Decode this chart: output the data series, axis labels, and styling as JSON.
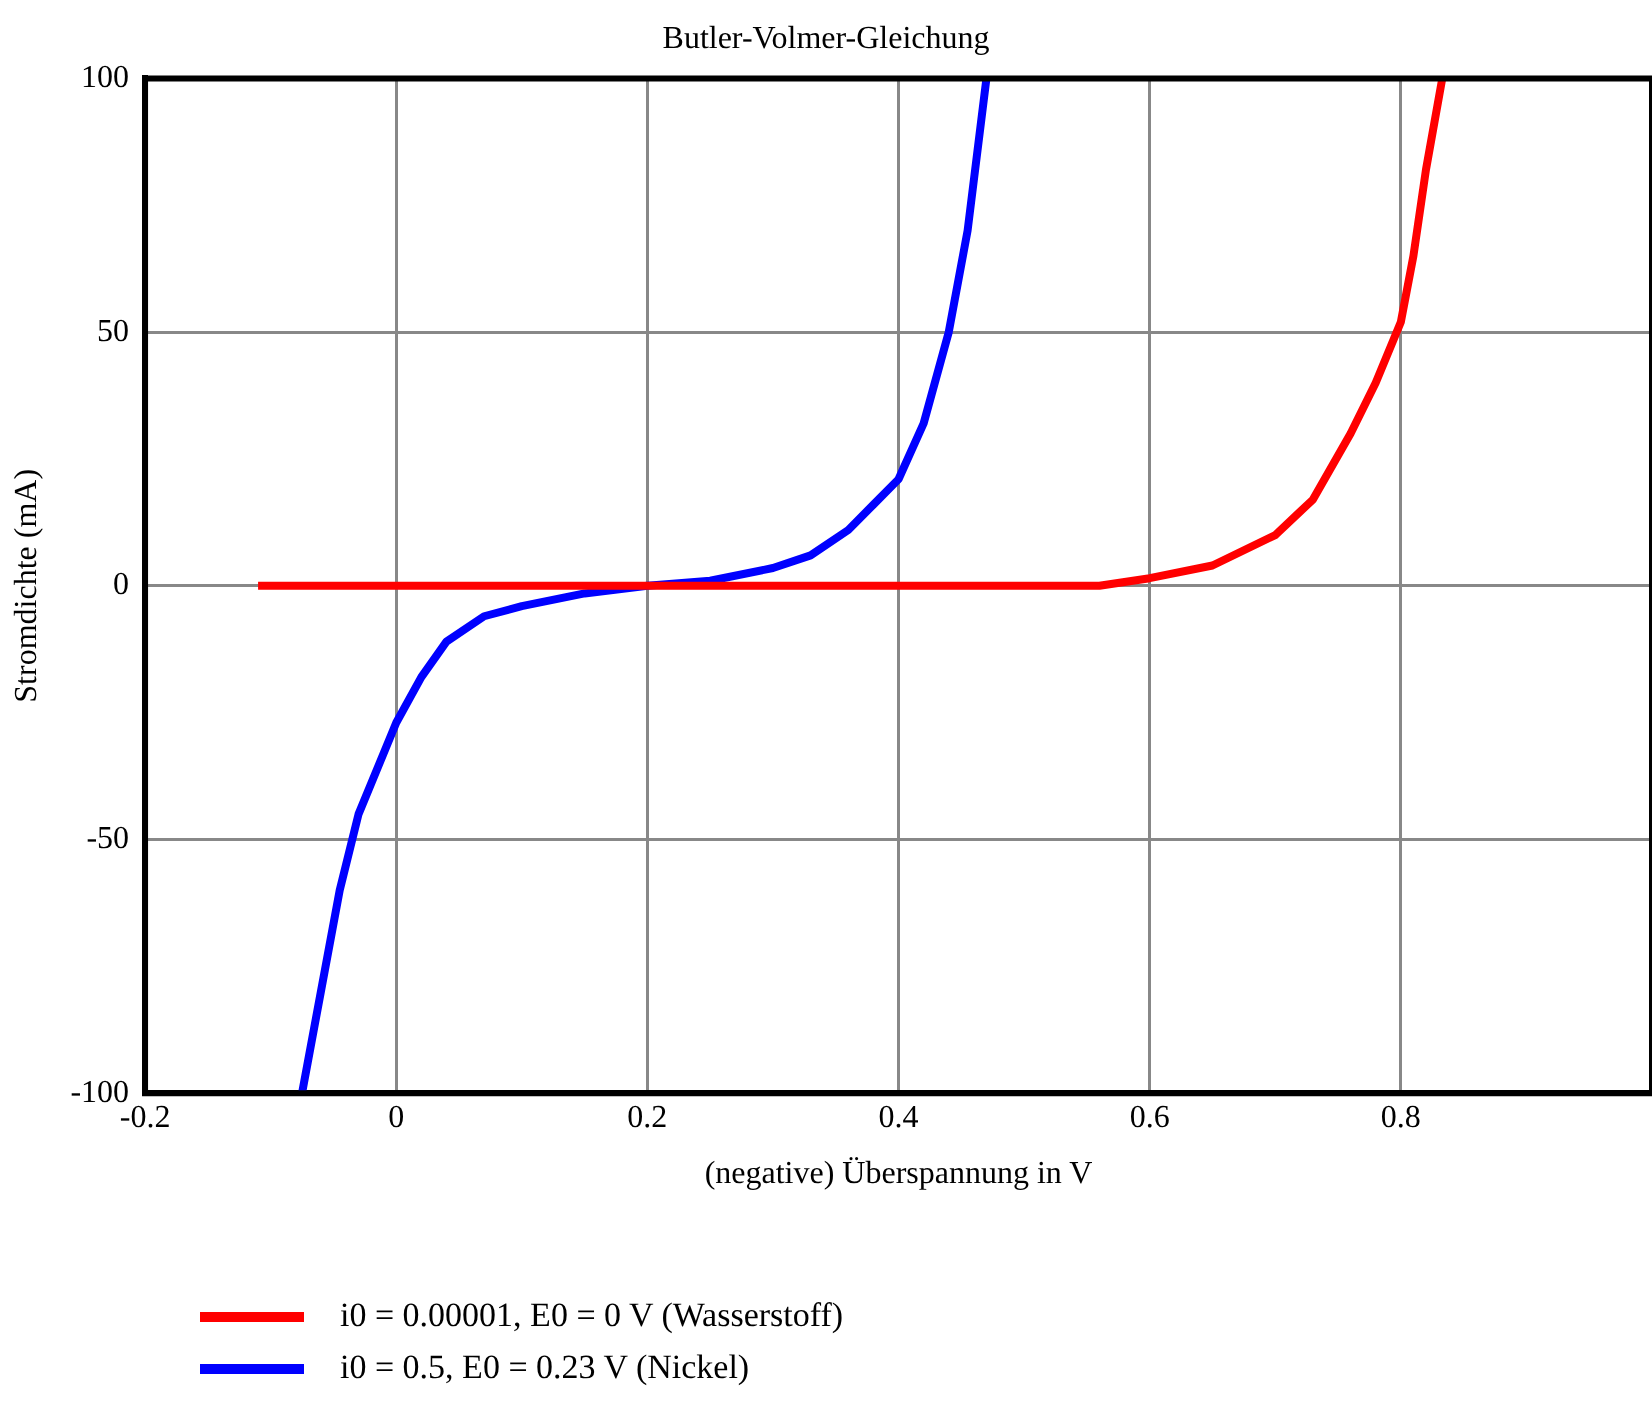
{
  "chart_data": {
    "type": "line",
    "title": "Butler-Volmer-Gleichung",
    "xlabel": "(negative) Überspannung in V",
    "ylabel": "Stromdichte (mA)",
    "xlim": [
      -0.2,
      1.0
    ],
    "xticks": [
      -0.2,
      0,
      0.2,
      0.4,
      0.6,
      0.8
    ],
    "ylim": [
      -100,
      100
    ],
    "yticks": [
      -100,
      -50,
      0,
      50,
      100
    ],
    "grid": true,
    "legend": "bottom left",
    "marker": "none",
    "line_style": "solid",
    "series": [
      {
        "name": "i0 = 0.00001, E0 = 0 V (Wasserstoff)",
        "color": "#ff0000",
        "x": [
          -0.11,
          0,
          0.2,
          0.4,
          0.56,
          0.6,
          0.65,
          0.7,
          0.73,
          0.76,
          0.78,
          0.8,
          0.81,
          0.82,
          0.833
        ],
        "values": [
          0,
          0,
          0,
          0,
          0,
          1.5,
          4,
          10,
          17,
          30,
          40,
          52,
          65,
          82,
          100
        ]
      },
      {
        "name": "i0 = 0.5, E0 = 0.23 V (Nickel)",
        "color": "#0000ff",
        "x": [
          -0.075,
          -0.06,
          -0.045,
          -0.03,
          -0.01,
          0,
          0.02,
          0.04,
          0.07,
          0.1,
          0.15,
          0.2,
          0.25,
          0.3,
          0.33,
          0.36,
          0.38,
          0.4,
          0.42,
          0.44,
          0.455,
          0.47
        ],
        "values": [
          -100,
          -80,
          -60,
          -45,
          -33,
          -27,
          -18,
          -11,
          -6,
          -4,
          -1.5,
          0,
          1,
          3.5,
          6,
          11,
          16,
          21,
          32,
          50,
          70,
          100
        ]
      }
    ]
  }
}
